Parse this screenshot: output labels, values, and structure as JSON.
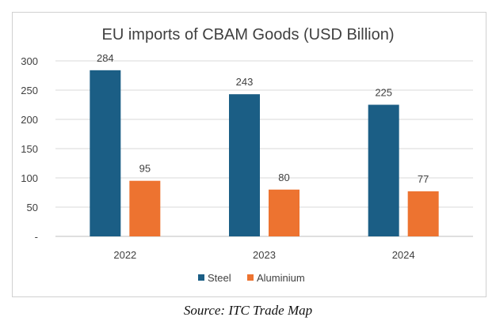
{
  "chart_data": {
    "type": "bar",
    "title": "EU imports of CBAM Goods (USD Billion)",
    "categories": [
      "2022",
      "2023",
      "2024"
    ],
    "series": [
      {
        "name": "Steel",
        "color": "#1b5e85",
        "values": [
          284,
          243,
          225
        ]
      },
      {
        "name": "Aluminium",
        "color": "#ed7330",
        "values": [
          95,
          80,
          77
        ]
      }
    ],
    "ylim": [
      0,
      300
    ],
    "yticks": [
      0,
      50,
      100,
      150,
      200,
      250,
      300
    ],
    "ytick_labels": [
      "-",
      "50",
      "100",
      "150",
      "200",
      "250",
      "300"
    ],
    "xlabel": "",
    "ylabel": "",
    "legend_position": "bottom",
    "grid": true
  },
  "caption": "Source: ITC Trade Map"
}
